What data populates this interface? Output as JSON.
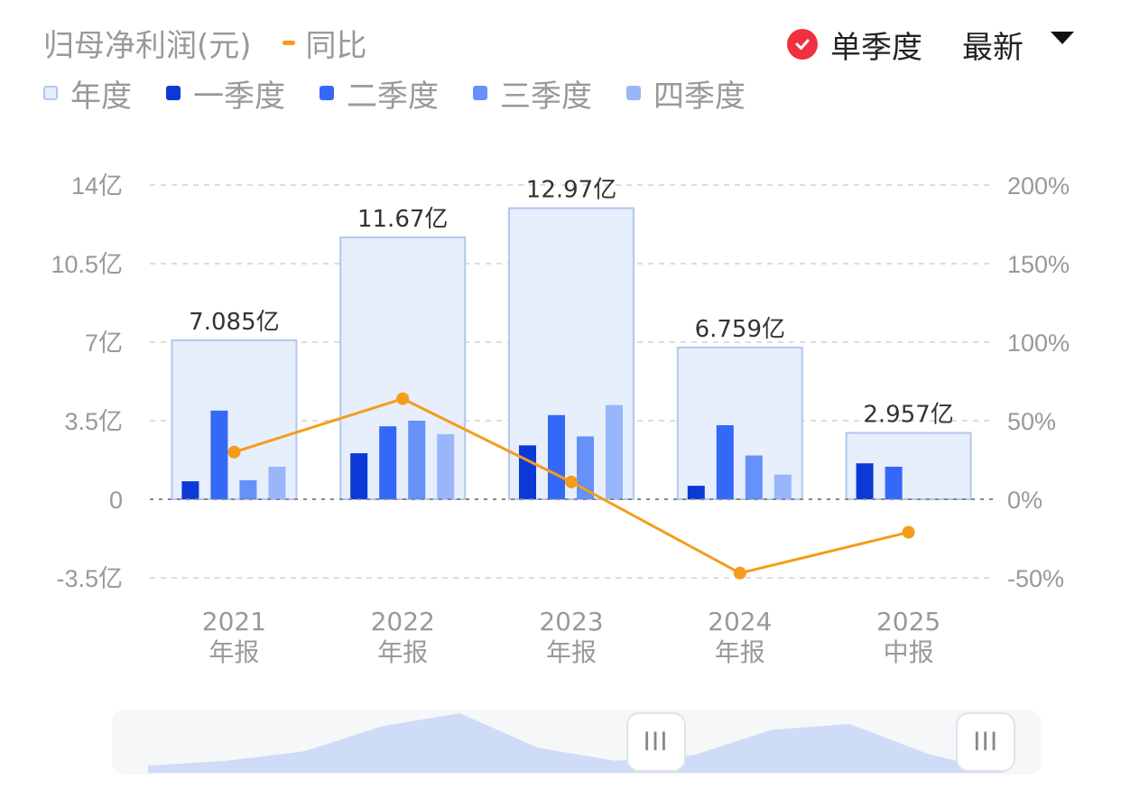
{
  "header": {
    "title": "归母净利润(元)",
    "yoy_legend_label": "同比",
    "quarterly_toggle_label": "单季度",
    "period_select_value": "最新"
  },
  "legend": [
    {
      "label": "年度",
      "color": "#e7eefc",
      "border": "#b4c6ee"
    },
    {
      "label": "一季度",
      "color": "#0c39d6"
    },
    {
      "label": "二季度",
      "color": "#3468f7"
    },
    {
      "label": "三季度",
      "color": "#6591f8"
    },
    {
      "label": "四季度",
      "color": "#9ab6fb"
    }
  ],
  "colors": {
    "annual_fill": "#e7eefc",
    "annual_border": "#b4c6ee",
    "q1": "#0c39d6",
    "q2": "#3468f7",
    "q3": "#6591f8",
    "q4": "#9ab6fb",
    "yoy_line": "#f49c1b",
    "grid": "#dddddd",
    "zero_line": "#888888",
    "navigator_area": "#cfdcf7",
    "toggle_check": "#f0303f"
  },
  "chart_data": {
    "type": "bar",
    "categories": [
      {
        "year": "2021",
        "period": "年报"
      },
      {
        "year": "2022",
        "period": "年报"
      },
      {
        "year": "2023",
        "period": "年报"
      },
      {
        "year": "2024",
        "period": "年报"
      },
      {
        "year": "2025",
        "period": "中报"
      }
    ],
    "annual": {
      "values": [
        7.085,
        11.67,
        12.97,
        6.759,
        2.957
      ],
      "labels": [
        "7.085亿",
        "11.67亿",
        "12.97亿",
        "6.759亿",
        "2.957亿"
      ]
    },
    "quarterly": [
      [
        0.8,
        3.95,
        0.85,
        1.45
      ],
      [
        2.05,
        3.25,
        3.5,
        2.9
      ],
      [
        2.4,
        3.75,
        2.8,
        4.2
      ],
      [
        0.6,
        3.3,
        1.95,
        1.1
      ],
      [
        1.6,
        1.45,
        null,
        null
      ]
    ],
    "yoy": {
      "values": [
        30,
        64,
        11,
        -47,
        -21
      ]
    },
    "left_axis": {
      "ticks": [
        14,
        10.5,
        7,
        3.5,
        0,
        -3.5
      ],
      "labels": [
        "14亿",
        "10.5亿",
        "7亿",
        "3.5亿",
        "0",
        "-3.5亿"
      ],
      "range": [
        -3.5,
        14
      ]
    },
    "right_axis": {
      "ticks": [
        200,
        150,
        100,
        50,
        0,
        -50
      ],
      "labels": [
        "200%",
        "150%",
        "100%",
        "50%",
        "0%",
        "-50%"
      ],
      "range": [
        -50,
        200
      ]
    },
    "grid": true
  },
  "navigator": {
    "range_start": 0.585,
    "range_end": 0.94,
    "handle_glyph": "III",
    "profile": [
      0.12,
      0.2,
      0.36,
      0.78,
      1.0,
      0.42,
      0.2,
      0.3,
      0.72,
      0.82,
      0.32,
      0.0
    ]
  }
}
